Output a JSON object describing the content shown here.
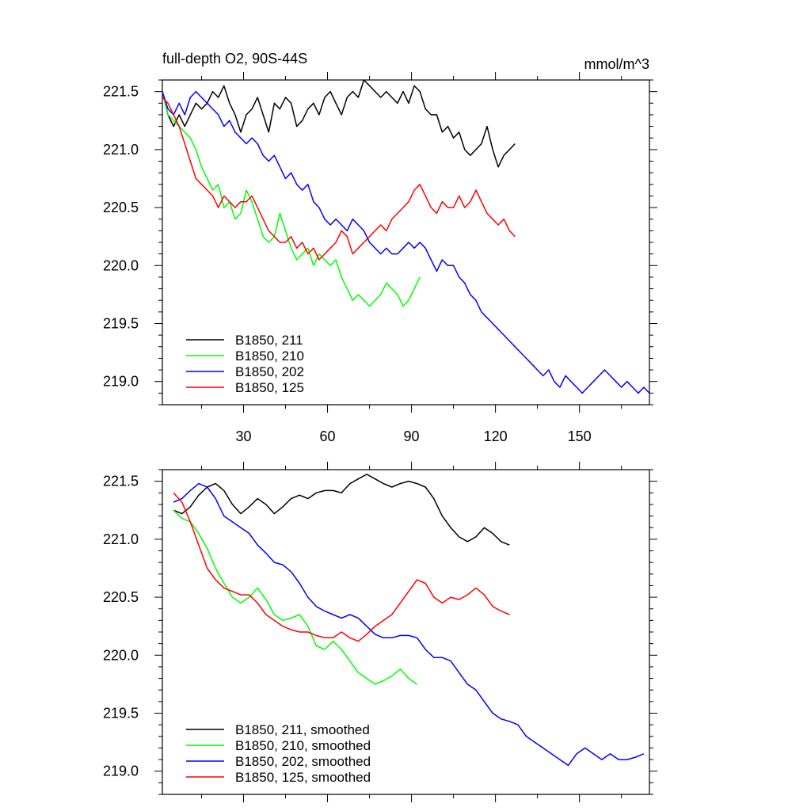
{
  "chart_data": [
    {
      "type": "line",
      "title": "full-depth O2, 90S-44S",
      "units": "mmol/m^3",
      "xlim": [
        1,
        175
      ],
      "ylim": [
        218.8,
        221.6
      ],
      "xticks": [
        30,
        60,
        90,
        120,
        150
      ],
      "yticks": [
        219.0,
        219.5,
        220.0,
        220.5,
        221.0,
        221.5
      ],
      "ytick_labels": [
        "219.0",
        "219.5",
        "220.0",
        "220.5",
        "221.0",
        "221.5"
      ],
      "xtick_labels": [
        "30",
        "60",
        "90",
        "120",
        "150"
      ],
      "legend_position": "bottom-left",
      "series": [
        {
          "name": "B1850, 211",
          "color": "#000000",
          "x": [
            1,
            3,
            5,
            7,
            9,
            11,
            13,
            15,
            17,
            19,
            21,
            23,
            25,
            27,
            29,
            31,
            33,
            35,
            37,
            39,
            41,
            43,
            45,
            47,
            49,
            51,
            53,
            55,
            57,
            59,
            61,
            63,
            65,
            67,
            69,
            71,
            73,
            75,
            77,
            79,
            81,
            83,
            85,
            87,
            89,
            91,
            93,
            95,
            97,
            99,
            101,
            103,
            105,
            107,
            109,
            111,
            113,
            115,
            117,
            119,
            121,
            123,
            125,
            127
          ],
          "y": [
            221.5,
            221.3,
            221.2,
            221.3,
            221.2,
            221.3,
            221.4,
            221.35,
            221.4,
            221.5,
            221.45,
            221.55,
            221.4,
            221.3,
            221.15,
            221.3,
            221.35,
            221.45,
            221.3,
            221.15,
            221.4,
            221.35,
            221.45,
            221.4,
            221.2,
            221.25,
            221.35,
            221.4,
            221.3,
            221.45,
            221.5,
            221.4,
            221.3,
            221.45,
            221.5,
            221.45,
            221.6,
            221.55,
            221.5,
            221.45,
            221.5,
            221.45,
            221.4,
            221.5,
            221.4,
            221.55,
            221.5,
            221.35,
            221.3,
            221.3,
            221.15,
            221.2,
            221.1,
            221.15,
            221.0,
            220.95,
            221.0,
            221.05,
            221.2,
            221.0,
            220.85,
            220.95,
            221.0,
            221.05
          ]
        },
        {
          "name": "B1850, 210",
          "color": "#00ff00",
          "x": [
            1,
            3,
            5,
            7,
            9,
            11,
            13,
            15,
            17,
            19,
            21,
            23,
            25,
            27,
            29,
            31,
            33,
            35,
            37,
            39,
            41,
            43,
            45,
            47,
            49,
            51,
            53,
            55,
            57,
            59,
            61,
            63,
            65,
            67,
            69,
            71,
            73,
            75,
            77,
            79,
            81,
            83,
            85,
            87,
            89,
            91,
            93
          ],
          "y": [
            221.5,
            221.3,
            221.25,
            221.2,
            221.15,
            221.1,
            221.0,
            220.85,
            220.75,
            220.65,
            220.7,
            220.5,
            220.55,
            220.4,
            220.45,
            220.65,
            220.55,
            220.4,
            220.25,
            220.2,
            220.25,
            220.45,
            220.3,
            220.15,
            220.05,
            220.1,
            220.15,
            220.0,
            220.1,
            220.05,
            220.0,
            220.05,
            219.9,
            219.8,
            219.7,
            219.75,
            219.7,
            219.65,
            219.7,
            219.75,
            219.85,
            219.8,
            219.75,
            219.65,
            219.7,
            219.8,
            219.9
          ]
        },
        {
          "name": "B1850, 202",
          "color": "#0000ff",
          "x": [
            1,
            3,
            5,
            7,
            9,
            11,
            13,
            15,
            17,
            19,
            21,
            23,
            25,
            27,
            29,
            31,
            33,
            35,
            37,
            39,
            41,
            43,
            45,
            47,
            49,
            51,
            53,
            55,
            57,
            59,
            61,
            63,
            65,
            67,
            69,
            71,
            73,
            75,
            77,
            79,
            81,
            83,
            85,
            87,
            89,
            91,
            93,
            95,
            97,
            99,
            101,
            103,
            105,
            107,
            109,
            111,
            113,
            115,
            117,
            119,
            121,
            123,
            125,
            127,
            129,
            131,
            133,
            135,
            137,
            139,
            141,
            143,
            145,
            147,
            149,
            151,
            153,
            155,
            157,
            159,
            161,
            163,
            165,
            167,
            169,
            171,
            173,
            175
          ],
          "y": [
            221.5,
            221.35,
            221.3,
            221.4,
            221.3,
            221.45,
            221.5,
            221.45,
            221.4,
            221.35,
            221.3,
            221.2,
            221.25,
            221.15,
            221.1,
            221.05,
            221.1,
            221.05,
            220.95,
            220.9,
            220.95,
            220.85,
            220.75,
            220.8,
            220.7,
            220.65,
            220.7,
            220.55,
            220.5,
            220.4,
            220.35,
            220.4,
            220.35,
            220.3,
            220.4,
            220.35,
            220.3,
            220.2,
            220.15,
            220.1,
            220.15,
            220.1,
            220.1,
            220.15,
            220.2,
            220.15,
            220.2,
            220.15,
            220.05,
            219.95,
            220.05,
            220.0,
            220.0,
            219.9,
            219.85,
            219.75,
            219.7,
            219.6,
            219.55,
            219.5,
            219.45,
            219.4,
            219.35,
            219.3,
            219.25,
            219.2,
            219.15,
            219.1,
            219.05,
            219.1,
            219.0,
            218.95,
            219.05,
            219.0,
            218.95,
            218.9,
            218.95,
            219.0,
            219.05,
            219.1,
            219.05,
            219.0,
            218.95,
            219.0,
            218.95,
            218.9,
            218.95,
            218.9
          ]
        },
        {
          "name": "B1850, 125",
          "color": "#ff0000",
          "x": [
            1,
            3,
            5,
            7,
            9,
            11,
            13,
            15,
            17,
            19,
            21,
            23,
            25,
            27,
            29,
            31,
            33,
            35,
            37,
            39,
            41,
            43,
            45,
            47,
            49,
            51,
            53,
            55,
            57,
            59,
            61,
            63,
            65,
            67,
            69,
            71,
            73,
            75,
            77,
            79,
            81,
            83,
            85,
            87,
            89,
            91,
            93,
            95,
            97,
            99,
            101,
            103,
            105,
            107,
            109,
            111,
            113,
            115,
            117,
            119,
            121,
            123,
            125,
            127
          ],
          "y": [
            221.45,
            221.4,
            221.3,
            221.2,
            221.05,
            220.9,
            220.75,
            220.7,
            220.65,
            220.6,
            220.5,
            220.6,
            220.55,
            220.5,
            220.55,
            220.55,
            220.6,
            220.5,
            220.4,
            220.3,
            220.25,
            220.2,
            220.2,
            220.25,
            220.15,
            220.2,
            220.1,
            220.15,
            220.05,
            220.1,
            220.15,
            220.2,
            220.3,
            220.25,
            220.1,
            220.15,
            220.2,
            220.25,
            220.3,
            220.35,
            220.3,
            220.4,
            220.45,
            220.5,
            220.55,
            220.65,
            220.7,
            220.6,
            220.5,
            220.45,
            220.55,
            220.5,
            220.5,
            220.6,
            220.5,
            220.55,
            220.65,
            220.55,
            220.45,
            220.4,
            220.35,
            220.4,
            220.3,
            220.25
          ]
        }
      ]
    },
    {
      "type": "line",
      "title": "",
      "units": "",
      "xlim": [
        1,
        175
      ],
      "ylim": [
        218.8,
        221.6
      ],
      "xticks": [
        30,
        60,
        90,
        120,
        150
      ],
      "yticks": [
        219.0,
        219.5,
        220.0,
        220.5,
        221.0,
        221.5
      ],
      "ytick_labels": [
        "219.0",
        "219.5",
        "220.0",
        "220.5",
        "221.0",
        "221.5"
      ],
      "xtick_labels": [],
      "legend_position": "bottom-left",
      "series": [
        {
          "name": "B1850, 211, smoothed",
          "color": "#000000",
          "x": [
            5,
            8,
            11,
            14,
            17,
            20,
            23,
            26,
            29,
            32,
            35,
            38,
            41,
            44,
            47,
            50,
            53,
            56,
            59,
            62,
            65,
            68,
            71,
            74,
            77,
            80,
            83,
            86,
            89,
            92,
            95,
            98,
            101,
            104,
            107,
            110,
            113,
            116,
            119,
            122,
            125
          ],
          "y": [
            221.25,
            221.22,
            221.28,
            221.38,
            221.45,
            221.48,
            221.42,
            221.3,
            221.22,
            221.28,
            221.35,
            221.3,
            221.22,
            221.28,
            221.35,
            221.38,
            221.35,
            221.4,
            221.42,
            221.42,
            221.4,
            221.48,
            221.52,
            221.56,
            221.52,
            221.48,
            221.45,
            221.48,
            221.5,
            221.48,
            221.45,
            221.35,
            221.2,
            221.1,
            221.02,
            220.98,
            221.02,
            221.1,
            221.05,
            220.98,
            220.95
          ]
        },
        {
          "name": "B1850, 210, smoothed",
          "color": "#00ff00",
          "x": [
            5,
            8,
            11,
            14,
            17,
            20,
            23,
            26,
            29,
            32,
            35,
            38,
            41,
            44,
            47,
            50,
            53,
            56,
            59,
            62,
            65,
            68,
            71,
            74,
            77,
            80,
            83,
            86,
            89,
            92
          ],
          "y": [
            221.25,
            221.18,
            221.15,
            221.05,
            220.92,
            220.75,
            220.62,
            220.5,
            220.45,
            220.5,
            220.58,
            220.48,
            220.35,
            220.3,
            220.32,
            220.35,
            220.25,
            220.08,
            220.05,
            220.12,
            220.05,
            219.95,
            219.85,
            219.8,
            219.75,
            219.78,
            219.82,
            219.88,
            219.8,
            219.75
          ]
        },
        {
          "name": "B1850, 202, smoothed",
          "color": "#0000ff",
          "x": [
            5,
            8,
            11,
            14,
            17,
            20,
            23,
            26,
            29,
            32,
            35,
            38,
            41,
            44,
            47,
            50,
            53,
            56,
            59,
            62,
            65,
            68,
            71,
            74,
            77,
            80,
            83,
            86,
            89,
            92,
            95,
            98,
            101,
            104,
            107,
            110,
            113,
            116,
            119,
            122,
            125,
            128,
            131,
            134,
            137,
            140,
            143,
            146,
            149,
            152,
            155,
            158,
            161,
            164,
            167,
            170,
            173
          ],
          "y": [
            221.32,
            221.35,
            221.42,
            221.48,
            221.45,
            221.35,
            221.2,
            221.15,
            221.1,
            221.05,
            220.95,
            220.88,
            220.8,
            220.78,
            220.72,
            220.62,
            220.5,
            220.42,
            220.38,
            220.35,
            220.32,
            220.35,
            220.32,
            220.25,
            220.18,
            220.15,
            220.15,
            220.17,
            220.17,
            220.15,
            220.05,
            219.98,
            219.98,
            219.95,
            219.85,
            219.75,
            219.7,
            219.6,
            219.5,
            219.45,
            219.43,
            219.4,
            219.3,
            219.25,
            219.2,
            219.15,
            219.1,
            219.05,
            219.15,
            219.2,
            219.15,
            219.1,
            219.15,
            219.1,
            219.1,
            219.12,
            219.15
          ]
        },
        {
          "name": "B1850, 125, smoothed",
          "color": "#ff0000",
          "x": [
            5,
            8,
            11,
            14,
            17,
            20,
            23,
            26,
            29,
            32,
            35,
            38,
            41,
            44,
            47,
            50,
            53,
            56,
            59,
            62,
            65,
            68,
            71,
            74,
            77,
            80,
            83,
            86,
            89,
            92,
            95,
            98,
            101,
            104,
            107,
            110,
            113,
            116,
            119,
            122,
            125
          ],
          "y": [
            221.4,
            221.32,
            221.15,
            220.95,
            220.75,
            220.65,
            220.58,
            220.55,
            220.52,
            220.52,
            220.45,
            220.35,
            220.3,
            220.25,
            220.22,
            220.2,
            220.2,
            220.17,
            220.15,
            220.15,
            220.2,
            220.15,
            220.12,
            220.18,
            220.25,
            220.3,
            220.35,
            220.45,
            220.55,
            220.65,
            220.62,
            220.5,
            220.45,
            220.5,
            220.48,
            220.52,
            220.58,
            220.52,
            220.42,
            220.38,
            220.35
          ]
        }
      ]
    }
  ]
}
